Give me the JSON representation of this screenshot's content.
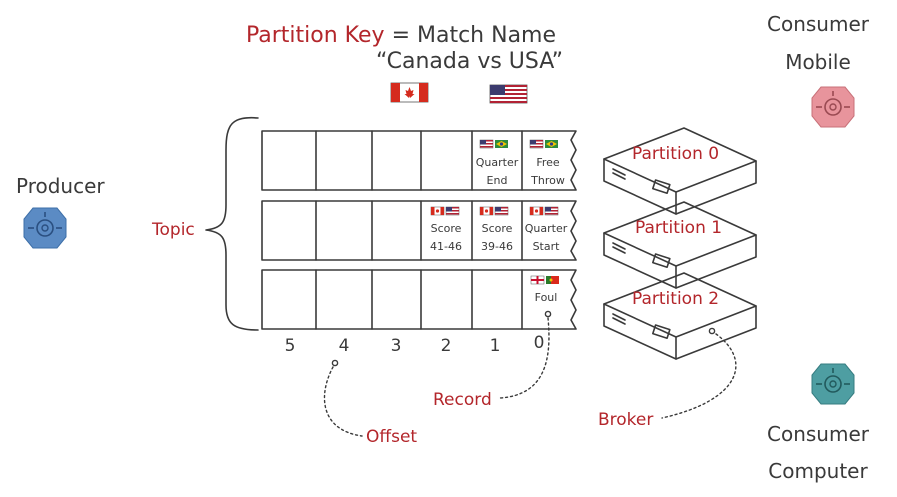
{
  "title": {
    "key_label": "Partition Key",
    "equals": " = Match Name",
    "match": "“Canada vs USA”"
  },
  "producer": {
    "label": "Producer",
    "color": "#5b8bc4"
  },
  "topic": {
    "label": "Topic"
  },
  "consumers": [
    {
      "line1": "Consumer",
      "line2": "Mobile",
      "color": "#e8949c"
    },
    {
      "line1": "Consumer",
      "line2": "Computer",
      "color": "#4e9ea2"
    }
  ],
  "partitions": [
    {
      "name": "Partition 0",
      "records": [
        {
          "offset": 0,
          "lines": [
            "Free",
            "Throw"
          ],
          "flags": [
            "usa",
            "brazil"
          ]
        },
        {
          "offset": 1,
          "lines": [
            "Quarter",
            "End"
          ],
          "flags": [
            "usa",
            "brazil"
          ]
        }
      ]
    },
    {
      "name": "Partition 1",
      "records": [
        {
          "offset": 0,
          "lines": [
            "Quarter",
            "Start"
          ],
          "flags": [
            "canada",
            "usa"
          ]
        },
        {
          "offset": 1,
          "lines": [
            "Score",
            "39-46"
          ],
          "flags": [
            "canada",
            "usa"
          ]
        },
        {
          "offset": 2,
          "lines": [
            "Score",
            "41-46"
          ],
          "flags": [
            "canada",
            "usa"
          ]
        }
      ]
    },
    {
      "name": "Partition 2",
      "records": [
        {
          "offset": 0,
          "lines": [
            "Foul"
          ],
          "flags": [
            "england",
            "portugal"
          ]
        }
      ]
    }
  ],
  "offsets": [
    "5",
    "4",
    "3",
    "2",
    "1",
    "0"
  ],
  "annotations": {
    "record": "Record",
    "offset": "Offset",
    "broker": "Broker"
  },
  "colors": {
    "accent_red": "#b3262b",
    "ink": "#3a3a3a",
    "canada_red": "#d52b1e",
    "usa_blue": "#3c3b6e",
    "brazil_green": "#2e8b3d",
    "portugal_green": "#2a7a2a"
  }
}
